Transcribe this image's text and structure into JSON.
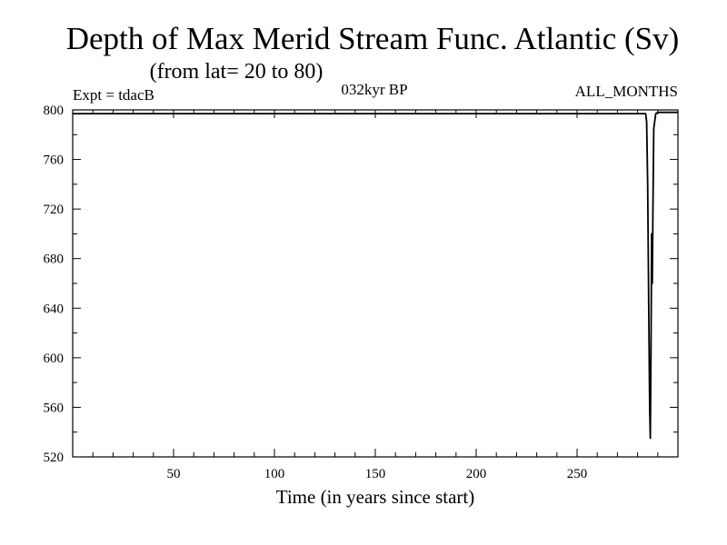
{
  "chart_data": {
    "type": "line",
    "title": "Depth of Max Merid Stream Func. Atlantic (Sv)",
    "subtitle": "(from lat= 20 to 80)",
    "annotations": {
      "left": "Expt = tdacB",
      "center": "032kyr BP",
      "right": "ALL_MONTHS"
    },
    "xlabel": "Time (in years since start)",
    "ylabel": "",
    "xlim": [
      0,
      300
    ],
    "ylim": [
      520,
      800
    ],
    "xticks": [
      50,
      100,
      150,
      200,
      250
    ],
    "yticks": [
      520,
      560,
      600,
      640,
      680,
      720,
      760,
      800
    ],
    "grid": false,
    "series": [
      {
        "x": [
          0,
          284,
          284.5,
          285,
          285.3,
          285.6,
          286,
          286.3,
          286.6,
          287,
          287.3,
          287.6,
          288,
          289,
          290,
          300
        ],
        "y": [
          797,
          797,
          790,
          740,
          680,
          630,
          560,
          535,
          600,
          700,
          660,
          720,
          785,
          797,
          798,
          798
        ]
      }
    ]
  }
}
